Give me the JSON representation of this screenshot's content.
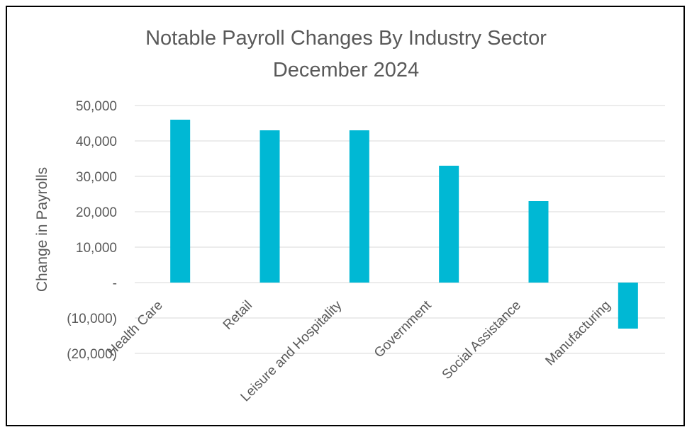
{
  "chart_data": {
    "type": "bar",
    "title": "Notable Payroll Changes By Industry Sector",
    "subtitle": "December 2024",
    "ylabel": "Change in Payrolls",
    "xlabel": "",
    "categories": [
      "Health Care",
      "Retail",
      "Leisure and Hospitality",
      "Government",
      "Social Assistance",
      "Manufacturing"
    ],
    "values": [
      46000,
      43000,
      43000,
      33000,
      23000,
      -13000
    ],
    "ylim": [
      -20000,
      50000
    ],
    "yticks": [
      50000,
      40000,
      30000,
      20000,
      10000,
      0,
      -10000,
      -20000
    ],
    "ytick_labels": [
      "50,000",
      "40,000",
      "30,000",
      "20,000",
      "10,000",
      "-",
      "(10,000)",
      "(20,000)"
    ],
    "grid": true,
    "legend": "none",
    "bar_color": "#00B8D4"
  }
}
